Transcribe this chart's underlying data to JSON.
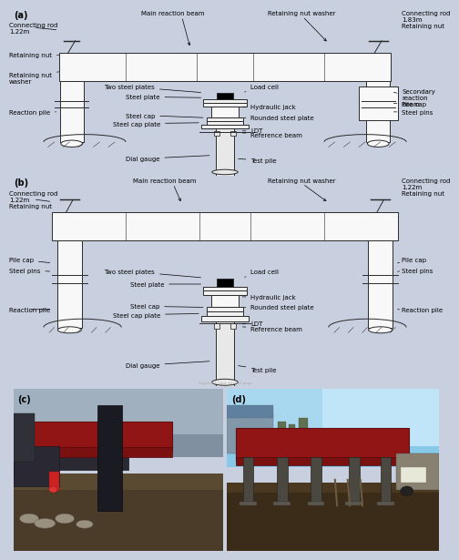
{
  "bg_color": "#c8d0e0",
  "diagram_bg": "#ffffff",
  "line_color": "#2a2a2a",
  "panel_a_label": "(a)",
  "panel_b_label": "(b)",
  "panel_c_label": "(c)",
  "panel_d_label": "(d)",
  "fsize": 5.0,
  "lw": 0.7,
  "annotations_a": {
    "top_center": "Main reaction beam",
    "top_right_label": "Retaining nut washer",
    "top_far_right": "Connecting rod\n1.83m\nRetaining nut",
    "left_1": "Connecting rod\n1.22m",
    "left_2": "Retaining nut",
    "left_3": "Retaining nut\nwasher",
    "left_4": "Reaction pile",
    "right_1": "Secondary\nreaction\nbeam",
    "right_2": "Pile cap",
    "right_3": "Steel pins",
    "cl_1": "Two steel plates",
    "cl_2": "Steel plate",
    "cl_3": "Steel cap",
    "cl_4": "Steel cap plate",
    "cl_5": "Dial gauge",
    "cr_1": "Load cell",
    "cr_2": "Hydraulic jack",
    "cr_3": "Rounded steel plate",
    "cr_4": "LDT",
    "cr_5": "Reference beam",
    "cr_6": "Test pile"
  },
  "annotations_b": {
    "top_center": "Main reaction beam",
    "top_right_label": "Retaining nut washer",
    "left_top": "Connecting rod\n1.22m\nRetaining nut",
    "left_2": "Pile cap",
    "left_3": "Steel pins",
    "left_4": "Reaction pile",
    "right_top": "Connecting rod\n1.22m\nRetaining nut",
    "right_2": "Pile cap",
    "right_3": "Steel pins",
    "right_4": "Reaction pile",
    "cl_1": "Two steel plates",
    "cl_2": "Steel plate",
    "cl_3": "Steel cap",
    "cl_4": "Steel cap plate",
    "cl_5": "Dial gauge",
    "cr_1": "Load cell",
    "cr_2": "Hydraulic jack",
    "cr_3": "Rounded steel plate",
    "cr_4": "LDT",
    "cr_5": "Reference beam",
    "cr_6": "Test pile"
  }
}
